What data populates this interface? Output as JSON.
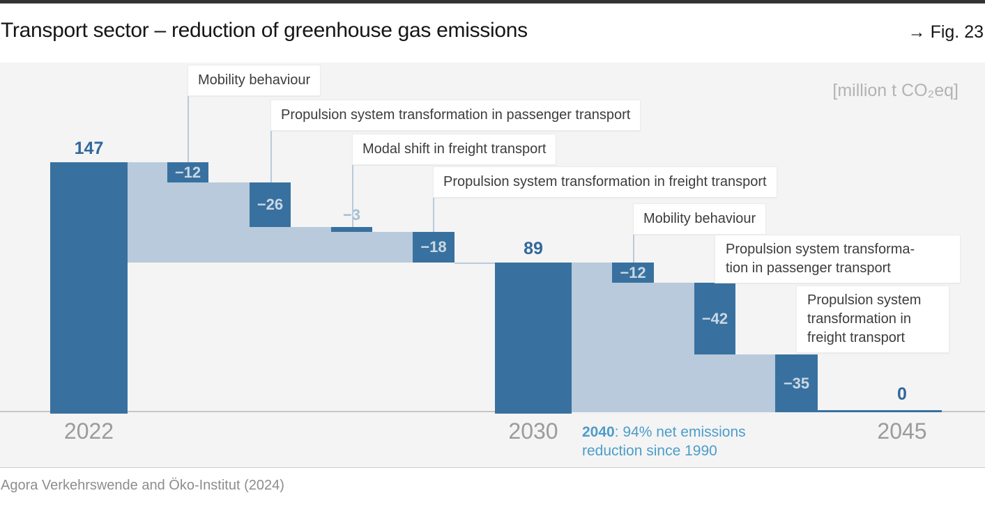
{
  "header": {
    "title": "Transport sector – reduction of greenhouse gas emissions",
    "figure_label": "→ Fig. 23"
  },
  "chart": {
    "units_label": "[million t CO₂eq]",
    "annotation": {
      "bold": "2040",
      "line1_rest": ": 94% net emissions",
      "line2": "reduction since 1990"
    },
    "colors": {
      "bar_dark": "#38719f",
      "band_light": "#b8cadb",
      "value_dark": "#30689b",
      "value_light": "#cbd8e4",
      "value_small": "#a8bed2",
      "leader": "#b8cadb",
      "annotation_blue": "#4c9dca",
      "axis_text": "#9b9b9b",
      "chart_background": "#f4f4f4",
      "baseline": "#c6c6c6"
    }
  },
  "chart_data": {
    "type": "waterfall",
    "title": "Transport sector – reduction of greenhouse gas emissions",
    "unit": "million t CO₂eq",
    "x_axis": [
      "2022",
      "2030",
      "2045"
    ],
    "milestones": [
      {
        "year": "2022",
        "value": 147,
        "display": "147"
      },
      {
        "year": "2030",
        "value": 89,
        "display": "89"
      },
      {
        "year": "2045",
        "value": 0,
        "display": "0"
      }
    ],
    "segments": [
      {
        "from": "2022",
        "to": "2030",
        "reductions": [
          {
            "label": "Mobility behaviour",
            "value": -12,
            "display": "−12"
          },
          {
            "label": "Propulsion system transformation in passenger transport",
            "value": -26,
            "display": "−26"
          },
          {
            "label": "Modal shift in freight transport",
            "value": -3,
            "display": "−3"
          },
          {
            "label": "Propulsion system transformation in freight transport",
            "value": -18,
            "display": "−18"
          }
        ]
      },
      {
        "from": "2030",
        "to": "2045",
        "reductions": [
          {
            "label": "Mobility behaviour",
            "value": -12,
            "display": "−12"
          },
          {
            "label": "Propulsion system transformation in passenger transport",
            "value": -42,
            "display": "−42",
            "callout_lines": [
              "Propulsion system transforma-",
              "tion in passenger transport"
            ]
          },
          {
            "label": "Propulsion system transformation in freight transport",
            "value": -35,
            "display": "−35",
            "callout_lines": [
              "Propulsion system",
              "transformation in",
              "freight transport"
            ]
          }
        ]
      }
    ],
    "annotation": "2040: 94% net emissions reduction since 1990"
  },
  "footer": {
    "source": "Agora Verkehrswende and Öko-Institut (2024)"
  }
}
